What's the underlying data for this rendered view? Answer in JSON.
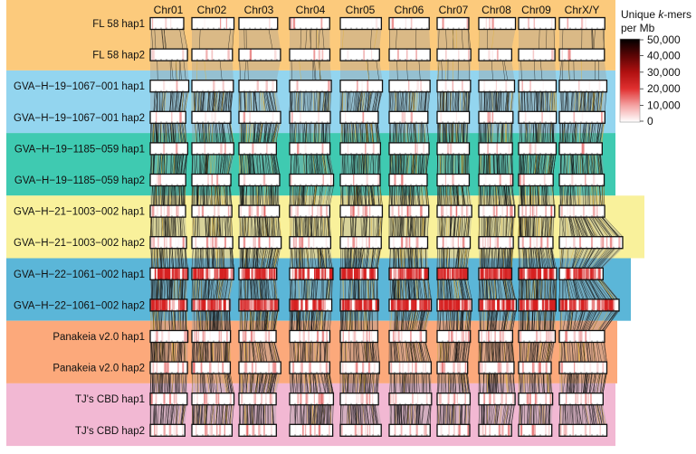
{
  "chromosomes": [
    "Chr01",
    "Chr02",
    "Chr03",
    "Chr04",
    "Chr05",
    "Chr06",
    "Chr07",
    "Chr08",
    "Chr09",
    "ChrX/Y"
  ],
  "groups": [
    {
      "color": "#fcca7c",
      "haplotypes": [
        "FL 58 hap1",
        "FL 58 hap2"
      ]
    },
    {
      "color": "#93d5ef",
      "haplotypes": [
        "GVA−H−19−1067−001 hap1",
        "GVA−H−19−1067−001 hap2"
      ]
    },
    {
      "color": "#3fcab1",
      "haplotypes": [
        "GVA−H−19−1185−059 hap1",
        "GVA−H−19−1185−059 hap2"
      ]
    },
    {
      "color": "#f9f19b",
      "haplotypes": [
        "GVA−H−21−1003−002 hap1",
        "GVA−H−21−1003−002 hap2"
      ]
    },
    {
      "color": "#5bb6d8",
      "haplotypes": [
        "GVA−H−22−1061−002 hap1",
        "GVA−H−22−1061−002 hap2"
      ]
    },
    {
      "color": "#fca97b",
      "haplotypes": [
        "Panakeia v2.0 hap1",
        "Panakeia v2.0 hap2"
      ]
    },
    {
      "color": "#f2b8d3",
      "haplotypes": [
        "TJ's CBD hap1",
        "TJ's CBD hap2"
      ]
    }
  ],
  "legend": {
    "title_line1_pre": "Unique ",
    "title_line1_em": "k",
    "title_line1_post": "-mers",
    "title_line2": "per Mb",
    "ticks": [
      "50,000",
      "40,000",
      "30,000",
      "20,000",
      "10,000",
      "0"
    ],
    "tick_values": [
      50000,
      40000,
      30000,
      20000,
      10000,
      0
    ],
    "scale_colors": [
      "#ffffff",
      "#f4a3a3",
      "#e03030",
      "#b01010",
      "#5a0505",
      "#000000"
    ]
  }
}
